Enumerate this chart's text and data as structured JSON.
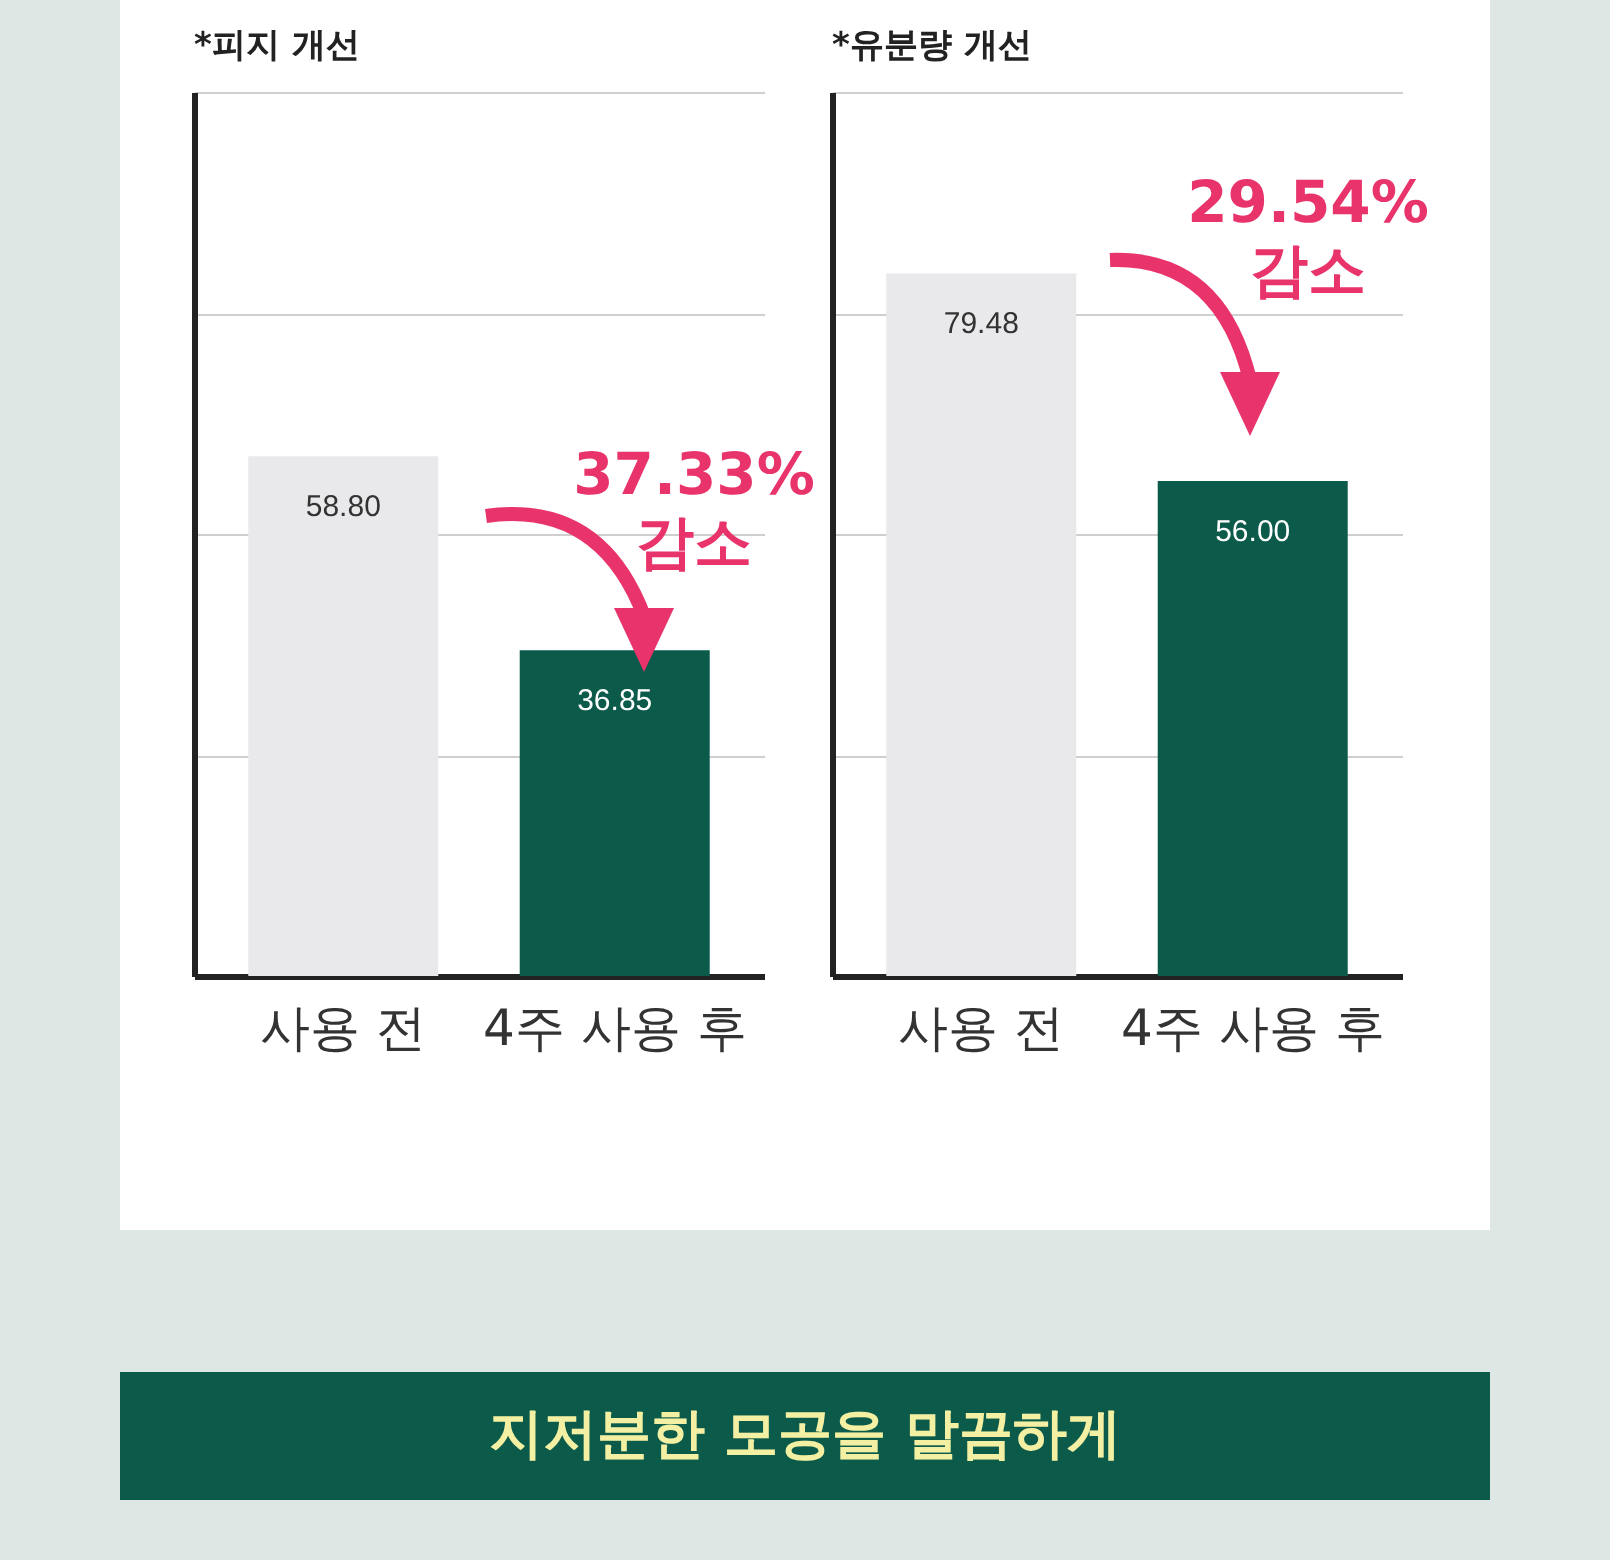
{
  "chart_data": [
    {
      "type": "bar",
      "title": "*피지 개선",
      "categories": [
        "사용 전",
        "4주 사용 후"
      ],
      "values": [
        58.8,
        36.85
      ],
      "colors": [
        "#e9e9eb",
        "#0b5a4a"
      ],
      "value_labels": [
        "58.80",
        "36.85"
      ],
      "ylim": [
        0,
        100
      ],
      "yticks": [
        {
          "value": 25,
          "label": null
        },
        {
          "value": 50,
          "label": null
        },
        {
          "value": 75,
          "label": null
        },
        {
          "value": 100,
          "label": null
        }
      ],
      "tick_labels": "x",
      "grid": "y",
      "annotations": [
        "37.33% 감소"
      ]
    },
    {
      "type": "bar",
      "title": "*유분량 개선",
      "categories": [
        "사용 전",
        "4주 사용 후"
      ],
      "values": [
        79.48,
        56.0
      ],
      "colors": [
        "#e9e9eb",
        "#0b5a4a"
      ],
      "value_labels": [
        "79.48",
        "56.00"
      ],
      "ylim": [
        0,
        100
      ],
      "yticks": [
        {
          "value": 25,
          "label": null
        },
        {
          "value": 50,
          "label": null
        },
        {
          "value": 75,
          "label": null
        },
        {
          "value": 100,
          "label": null
        }
      ],
      "tick_labels": "x",
      "grid": "y",
      "annotations": [
        "29.54% 감소",
        "지저분한 모공을 말끔하게"
      ]
    }
  ]
}
